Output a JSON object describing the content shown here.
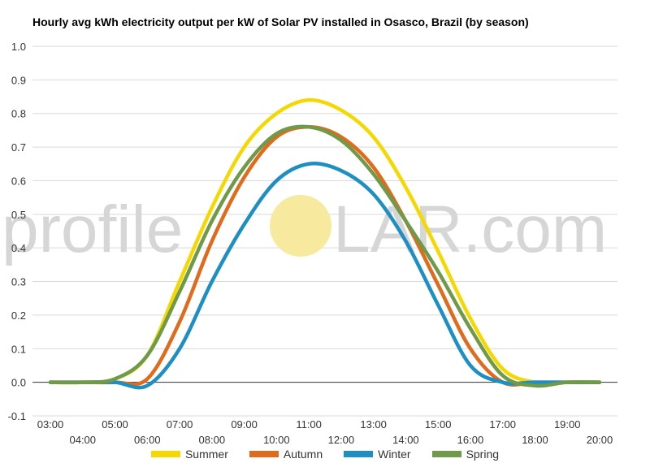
{
  "chart_data": {
    "type": "line",
    "title": "Hourly avg kWh electricity output per kW of Solar PV installed in Osasco, Brazil (by season)",
    "xlabel": "",
    "ylabel": "",
    "categories": [
      "03:00",
      "04:00",
      "05:00",
      "06:00",
      "07:00",
      "08:00",
      "09:00",
      "10:00",
      "11:00",
      "12:00",
      "13:00",
      "14:00",
      "15:00",
      "16:00",
      "17:00",
      "18:00",
      "19:00",
      "20:00"
    ],
    "ylim": [
      -0.1,
      1.0
    ],
    "yticks": [
      "-0.1",
      "0.0",
      "0.1",
      "0.2",
      "0.3",
      "0.4",
      "0.5",
      "0.6",
      "0.7",
      "0.8",
      "0.9",
      "1.0"
    ],
    "grid": true,
    "legend_position": "bottom",
    "series": [
      {
        "name": "Summer",
        "color": "#f5d800",
        "values": [
          0,
          0,
          0.01,
          0.08,
          0.3,
          0.52,
          0.7,
          0.8,
          0.84,
          0.81,
          0.73,
          0.58,
          0.39,
          0.19,
          0.04,
          0.0,
          0,
          0
        ]
      },
      {
        "name": "Autumn",
        "color": "#e06b1c",
        "values": [
          0,
          0,
          0,
          0.01,
          0.18,
          0.42,
          0.61,
          0.73,
          0.76,
          0.73,
          0.64,
          0.48,
          0.29,
          0.1,
          0.0,
          0,
          0,
          0
        ]
      },
      {
        "name": "Winter",
        "color": "#1e8fc2",
        "values": [
          0,
          0,
          0,
          -0.01,
          0.1,
          0.3,
          0.47,
          0.6,
          0.65,
          0.63,
          0.56,
          0.42,
          0.23,
          0.05,
          0.0,
          0,
          0,
          0
        ]
      },
      {
        "name": "Spring",
        "color": "#6e9a4a",
        "values": [
          0,
          0,
          0.01,
          0.08,
          0.27,
          0.48,
          0.64,
          0.74,
          0.76,
          0.72,
          0.62,
          0.48,
          0.33,
          0.16,
          0.02,
          -0.01,
          0,
          0
        ]
      }
    ]
  },
  "watermark": {
    "text_left": "profile",
    "text_right": "LAR.com",
    "sun_color": "#f7ea9e",
    "text_color": "#d6d6d6"
  }
}
